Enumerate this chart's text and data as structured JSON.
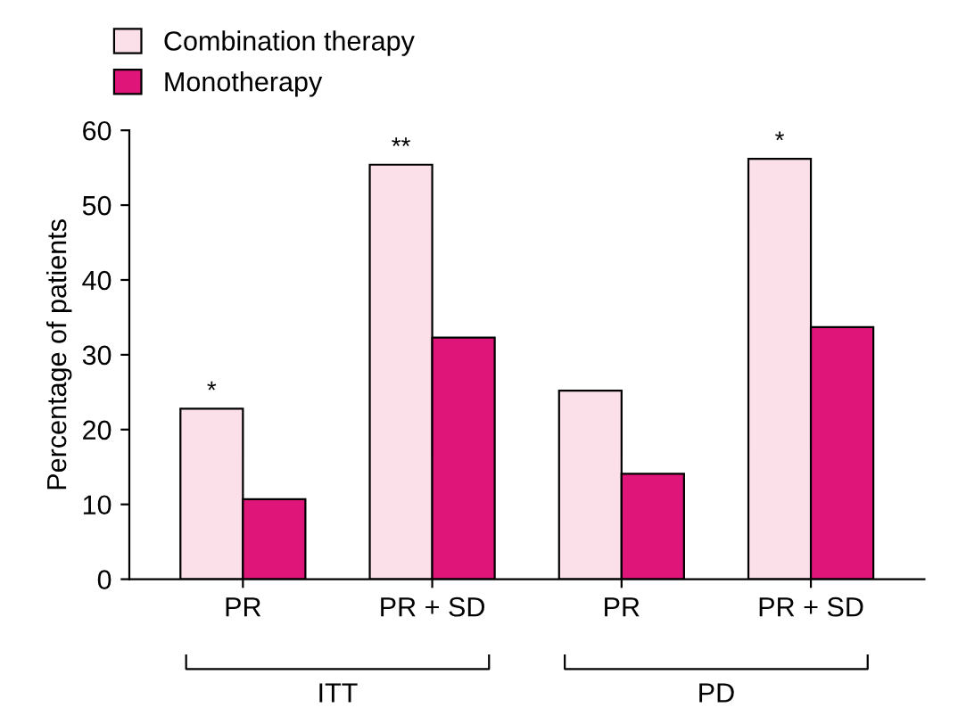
{
  "chart_data": {
    "type": "bar",
    "ylabel": "Percentage of patients",
    "categories": [
      "PR",
      "PR + SD",
      "PR",
      "PR + SD"
    ],
    "series": [
      {
        "name": "Combination therapy",
        "color": "#fbe0ea",
        "values": [
          22.8,
          55.4,
          25.2,
          56.2
        ],
        "value_labels": [
          "*",
          "**",
          null,
          "*"
        ]
      },
      {
        "name": "Monotherapy",
        "color": "#e0157a",
        "values": [
          10.7,
          32.3,
          14.1,
          33.7
        ]
      }
    ],
    "annotations": [
      "ITT",
      "PD"
    ],
    "ylim": [
      0,
      60
    ],
    "yticks": [
      0,
      10,
      20,
      30,
      40,
      50,
      60
    ],
    "grid": false,
    "legend": "top left"
  }
}
